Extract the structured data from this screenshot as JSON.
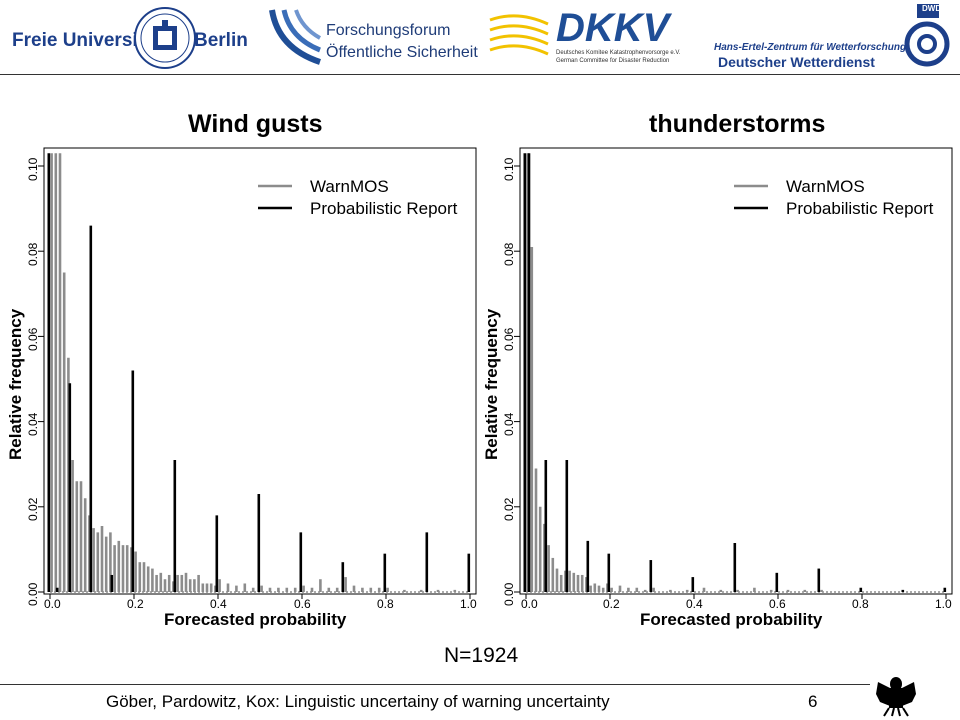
{
  "header": {
    "logo_fu": {
      "left": "Freie Universität",
      "right": "Berlin"
    },
    "logo_forum": {
      "line1": "Forschungsforum",
      "line2": "Öffentliche Sicherheit"
    },
    "logo_dkkv": {
      "name": "DKKV",
      "sub1": "Deutsches Komitee Katastrophenvorsorge e.V.",
      "sub2": "German Committee for Disaster Reduction"
    },
    "logo_dwd": {
      "line1": "Hans-Ertel-Zentrum für Wetterforschung",
      "line2": "Deutscher Wetterdienst",
      "badge": "DWD"
    }
  },
  "footer": {
    "citation": "Göber, Pardowitz, Kox: Linguistic uncertainy of warning uncertainty",
    "page": "6"
  },
  "n_label": "N=1924",
  "colors": {
    "warnmos": "#8c8c8c",
    "report": "#000000",
    "dkkv_yellow": "#f2c200",
    "forum_blue": "#1f4e96",
    "fu_blue": "#1d3f8a"
  },
  "chart_data": [
    {
      "type": "bar",
      "title": "Wind gusts",
      "xlabel": "Forecasted probability",
      "ylabel": "Relative frequency",
      "xlim": [
        0,
        1
      ],
      "ylim": [
        0,
        0.1
      ],
      "xticks": [
        "0.0",
        "0.2",
        "0.4",
        "0.6",
        "0.8",
        "1.0"
      ],
      "yticks": [
        "0.00",
        "0.02",
        "0.04",
        "0.06",
        "0.08",
        "0.10"
      ],
      "legend": "top-right",
      "series": [
        {
          "name": "WarnMOS",
          "x": [
            0.0,
            0.01,
            0.02,
            0.03,
            0.04,
            0.05,
            0.06,
            0.07,
            0.08,
            0.09,
            0.1,
            0.11,
            0.12,
            0.13,
            0.14,
            0.15,
            0.16,
            0.17,
            0.18,
            0.19,
            0.2,
            0.21,
            0.22,
            0.23,
            0.24,
            0.25,
            0.26,
            0.27,
            0.28,
            0.29,
            0.3,
            0.31,
            0.32,
            0.33,
            0.34,
            0.35,
            0.36,
            0.37,
            0.38,
            0.39,
            0.4,
            0.42,
            0.44,
            0.46,
            0.48,
            0.5,
            0.52,
            0.54,
            0.56,
            0.58,
            0.6,
            0.62,
            0.64,
            0.66,
            0.68,
            0.7,
            0.72,
            0.74,
            0.76,
            0.78,
            0.8,
            0.84,
            0.88,
            0.92,
            0.96
          ],
          "values": [
            0.103,
            0.103,
            0.103,
            0.075,
            0.055,
            0.031,
            0.026,
            0.026,
            0.022,
            0.018,
            0.015,
            0.014,
            0.0155,
            0.013,
            0.014,
            0.011,
            0.012,
            0.011,
            0.011,
            0.0105,
            0.0095,
            0.007,
            0.007,
            0.006,
            0.0055,
            0.004,
            0.0045,
            0.003,
            0.004,
            0.0025,
            0.004,
            0.004,
            0.0045,
            0.003,
            0.003,
            0.004,
            0.002,
            0.002,
            0.002,
            0.0015,
            0.003,
            0.002,
            0.0015,
            0.002,
            0.001,
            0.0015,
            0.001,
            0.001,
            0.001,
            0.001,
            0.0015,
            0.001,
            0.003,
            0.001,
            0.001,
            0.0035,
            0.0015,
            0.001,
            0.001,
            0.001,
            0.001,
            0.0005,
            0.0005,
            0.0005,
            0.0005
          ]
        },
        {
          "name": "Probabilistic Report",
          "x": [
            0.0,
            0.02,
            0.05,
            0.1,
            0.15,
            0.2,
            0.3,
            0.4,
            0.5,
            0.6,
            0.7,
            0.8,
            0.9,
            1.0
          ],
          "values": [
            0.103,
            0.001,
            0.049,
            0.086,
            0.004,
            0.052,
            0.031,
            0.018,
            0.023,
            0.014,
            0.007,
            0.009,
            0.014,
            0.009
          ]
        }
      ]
    },
    {
      "type": "bar",
      "title": "thunderstorms",
      "xlabel": "Forecasted probability",
      "ylabel": "Relative frequency",
      "xlim": [
        0,
        1
      ],
      "ylim": [
        0,
        0.1
      ],
      "xticks": [
        "0.0",
        "0.2",
        "0.4",
        "0.6",
        "0.8",
        "1.0"
      ],
      "yticks": [
        "0.00",
        "0.02",
        "0.04",
        "0.06",
        "0.08",
        "0.10"
      ],
      "legend": "top-right",
      "series": [
        {
          "name": "WarnMOS",
          "x": [
            0.0,
            0.01,
            0.02,
            0.03,
            0.04,
            0.05,
            0.06,
            0.07,
            0.08,
            0.09,
            0.1,
            0.11,
            0.12,
            0.13,
            0.14,
            0.15,
            0.16,
            0.17,
            0.18,
            0.19,
            0.2,
            0.22,
            0.24,
            0.26,
            0.28,
            0.3,
            0.34,
            0.38,
            0.42,
            0.46,
            0.5,
            0.54,
            0.58,
            0.62,
            0.66,
            0.7
          ],
          "values": [
            0.103,
            0.081,
            0.029,
            0.02,
            0.016,
            0.011,
            0.008,
            0.0055,
            0.004,
            0.005,
            0.005,
            0.0045,
            0.004,
            0.004,
            0.0035,
            0.0015,
            0.002,
            0.0015,
            0.001,
            0.002,
            0.001,
            0.0015,
            0.001,
            0.001,
            0.0005,
            0.001,
            0.0005,
            0.0005,
            0.001,
            0.0005,
            0.0005,
            0.001,
            0.0005,
            0.0005,
            0.0005,
            0.0005
          ]
        },
        {
          "name": "Probabilistic Report",
          "x": [
            0.0,
            0.01,
            0.05,
            0.1,
            0.15,
            0.2,
            0.3,
            0.4,
            0.5,
            0.6,
            0.7,
            0.8,
            0.9,
            1.0
          ],
          "values": [
            0.103,
            0.103,
            0.031,
            0.031,
            0.012,
            0.009,
            0.0075,
            0.0035,
            0.0115,
            0.0045,
            0.0055,
            0.001,
            0.0005,
            0.001
          ]
        }
      ]
    }
  ]
}
